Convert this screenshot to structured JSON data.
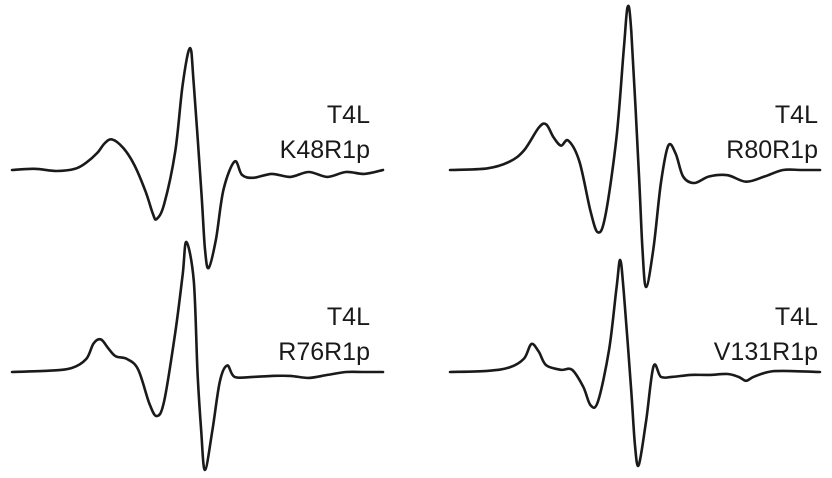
{
  "chart_data": {
    "type": "line",
    "trace_color": "#1a1a1a",
    "grid": false,
    "axes_shown": false,
    "panels": [
      {
        "title_lines": [
          "T4L",
          "K48R1p"
        ],
        "points": [
          [
            0,
            0
          ],
          [
            0.06,
            0.01
          ],
          [
            0.12,
            -0.01
          ],
          [
            0.17,
            0.01
          ],
          [
            0.2,
            0.06
          ],
          [
            0.23,
            0.14
          ],
          [
            0.25,
            0.22
          ],
          [
            0.27,
            0.25
          ],
          [
            0.3,
            0.18
          ],
          [
            0.33,
            0.04
          ],
          [
            0.36,
            -0.22
          ],
          [
            0.38,
            -0.45
          ],
          [
            0.39,
            -0.5
          ],
          [
            0.41,
            -0.35
          ],
          [
            0.44,
            0.15
          ],
          [
            0.46,
            0.7
          ],
          [
            0.48,
            1.0
          ],
          [
            0.49,
            0.7
          ],
          [
            0.51,
            -0.2
          ],
          [
            0.52,
            -0.8
          ],
          [
            0.53,
            -1.0
          ],
          [
            0.55,
            -0.7
          ],
          [
            0.57,
            -0.2
          ],
          [
            0.6,
            0.07
          ],
          [
            0.62,
            -0.05
          ],
          [
            0.65,
            -0.08
          ],
          [
            0.7,
            -0.04
          ],
          [
            0.75,
            -0.07
          ],
          [
            0.8,
            -0.02
          ],
          [
            0.85,
            -0.07
          ],
          [
            0.9,
            -0.02
          ],
          [
            0.95,
            -0.04
          ],
          [
            1,
            0
          ]
        ]
      },
      {
        "title_lines": [
          "T4L",
          "R80R1p"
        ],
        "points": [
          [
            0,
            0
          ],
          [
            0.1,
            0.01
          ],
          [
            0.16,
            0.05
          ],
          [
            0.2,
            0.12
          ],
          [
            0.24,
            0.26
          ],
          [
            0.26,
            0.28
          ],
          [
            0.28,
            0.2
          ],
          [
            0.3,
            0.15
          ],
          [
            0.32,
            0.18
          ],
          [
            0.35,
            0.05
          ],
          [
            0.38,
            -0.32
          ],
          [
            0.4,
            -0.48
          ],
          [
            0.42,
            -0.35
          ],
          [
            0.45,
            0.2
          ],
          [
            0.47,
            0.75
          ],
          [
            0.48,
            1.0
          ],
          [
            0.49,
            0.85
          ],
          [
            0.51,
            0.0
          ],
          [
            0.52,
            -0.6
          ],
          [
            0.53,
            -0.9
          ],
          [
            0.55,
            -0.6
          ],
          [
            0.57,
            -0.1
          ],
          [
            0.59,
            0.15
          ],
          [
            0.61,
            0.1
          ],
          [
            0.63,
            -0.05
          ],
          [
            0.66,
            -0.1
          ],
          [
            0.7,
            -0.05
          ],
          [
            0.75,
            -0.04
          ],
          [
            0.8,
            -0.09
          ],
          [
            0.85,
            -0.05
          ],
          [
            0.9,
            0.0
          ],
          [
            0.95,
            0.0
          ],
          [
            1,
            0
          ]
        ]
      },
      {
        "title_lines": [
          "T4L",
          "R76R1p"
        ],
        "points": [
          [
            0,
            0
          ],
          [
            0.1,
            0.01
          ],
          [
            0.16,
            0.03
          ],
          [
            0.2,
            0.1
          ],
          [
            0.22,
            0.22
          ],
          [
            0.24,
            0.25
          ],
          [
            0.26,
            0.18
          ],
          [
            0.28,
            0.12
          ],
          [
            0.31,
            0.1
          ],
          [
            0.34,
            0.02
          ],
          [
            0.37,
            -0.32
          ],
          [
            0.39,
            -0.45
          ],
          [
            0.41,
            -0.3
          ],
          [
            0.44,
            0.3
          ],
          [
            0.46,
            0.75
          ],
          [
            0.47,
            1.0
          ],
          [
            0.49,
            0.7
          ],
          [
            0.5,
            0.0
          ],
          [
            0.51,
            -0.6
          ],
          [
            0.52,
            -1.0
          ],
          [
            0.54,
            -0.6
          ],
          [
            0.56,
            -0.1
          ],
          [
            0.58,
            0.05
          ],
          [
            0.6,
            -0.05
          ],
          [
            0.65,
            -0.05
          ],
          [
            0.7,
            -0.04
          ],
          [
            0.75,
            -0.04
          ],
          [
            0.8,
            -0.06
          ],
          [
            0.85,
            -0.03
          ],
          [
            0.9,
            0.0
          ],
          [
            0.95,
            0.0
          ],
          [
            1,
            0
          ]
        ]
      },
      {
        "title_lines": [
          "T4L",
          "V131R1p"
        ],
        "points": [
          [
            0,
            0
          ],
          [
            0.1,
            0.01
          ],
          [
            0.16,
            0.04
          ],
          [
            0.2,
            0.12
          ],
          [
            0.22,
            0.25
          ],
          [
            0.24,
            0.18
          ],
          [
            0.26,
            0.06
          ],
          [
            0.3,
            0.02
          ],
          [
            0.33,
            0.02
          ],
          [
            0.36,
            -0.15
          ],
          [
            0.38,
            -0.34
          ],
          [
            0.4,
            -0.3
          ],
          [
            0.43,
            0.2
          ],
          [
            0.45,
            0.75
          ],
          [
            0.46,
            1.0
          ],
          [
            0.47,
            0.7
          ],
          [
            0.49,
            -0.2
          ],
          [
            0.5,
            -0.75
          ],
          [
            0.51,
            -0.95
          ],
          [
            0.53,
            -0.5
          ],
          [
            0.55,
            0.05
          ],
          [
            0.57,
            -0.05
          ],
          [
            0.6,
            -0.05
          ],
          [
            0.65,
            -0.03
          ],
          [
            0.7,
            -0.03
          ],
          [
            0.75,
            -0.02
          ],
          [
            0.78,
            -0.05
          ],
          [
            0.8,
            -0.09
          ],
          [
            0.82,
            -0.05
          ],
          [
            0.86,
            0.0
          ],
          [
            0.9,
            0.01
          ],
          [
            1,
            0
          ]
        ]
      }
    ]
  }
}
